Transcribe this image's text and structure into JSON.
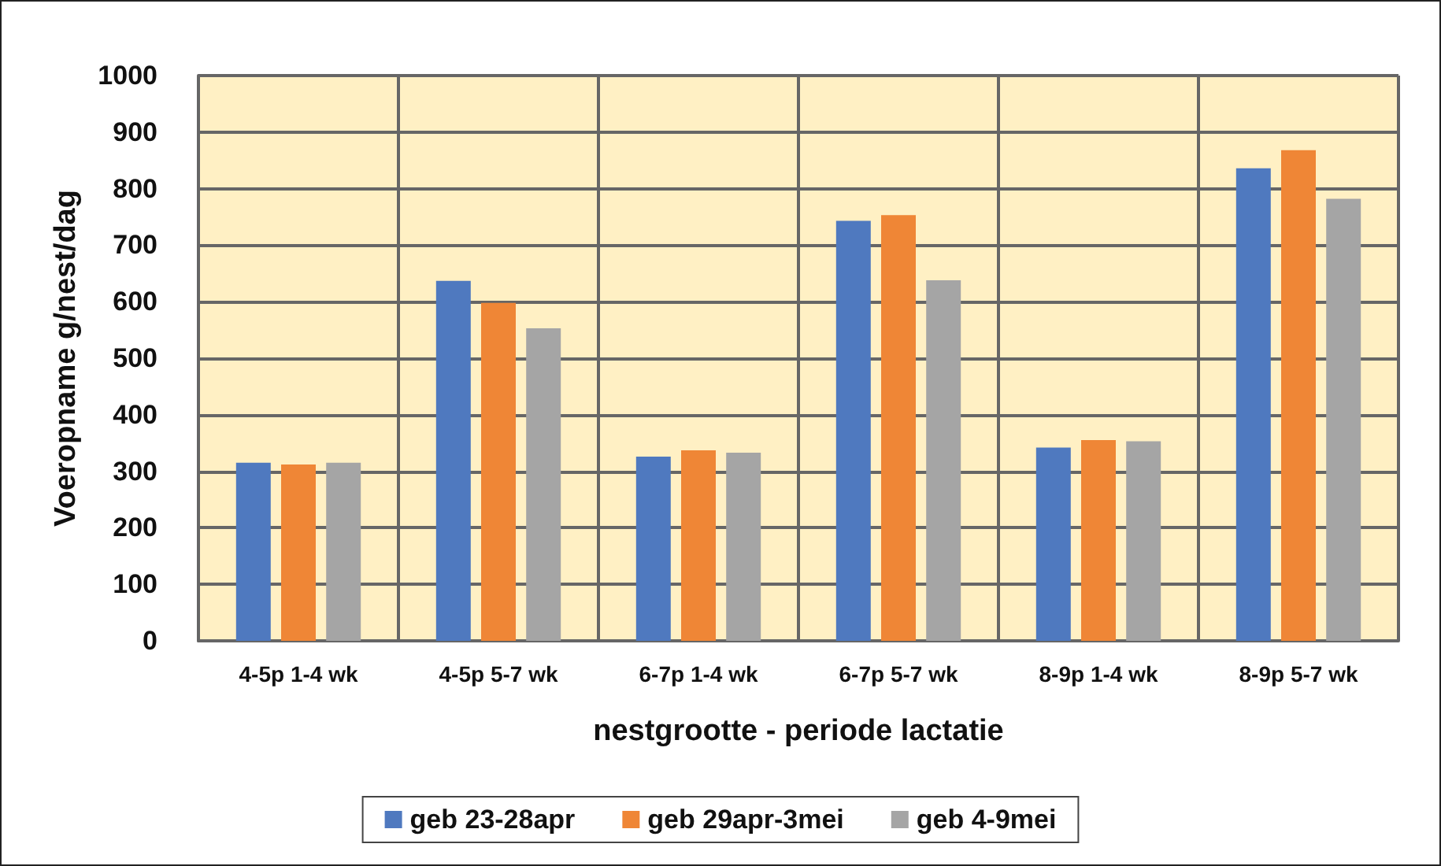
{
  "chart_data": {
    "type": "bar",
    "xlabel": "nestgrootte - periode lactatie",
    "ylabel": "Voeropname g/nest/dag",
    "categories": [
      "4-5p 1-4 wk",
      "4-5p 5-7 wk",
      "6-7p 1-4 wk",
      "6-7p 5-7 wk",
      "8-9p 1-4 wk",
      "8-9p 5-7 wk"
    ],
    "series": [
      {
        "name": "geb 23-28apr",
        "color": "#4f79bf",
        "values": [
          315,
          637,
          326,
          743,
          342,
          836
        ]
      },
      {
        "name": "geb 29apr-3mei",
        "color": "#ef8636",
        "values": [
          312,
          598,
          337,
          753,
          355,
          868
        ]
      },
      {
        "name": "geb 4-9mei",
        "color": "#a5a5a5",
        "values": [
          315,
          553,
          333,
          638,
          353,
          782
        ]
      }
    ],
    "ylim": [
      0,
      1000
    ],
    "yticks": [
      0,
      100,
      200,
      300,
      400,
      500,
      600,
      700,
      800,
      900,
      1000
    ],
    "grid": true,
    "legend": "bottom"
  }
}
